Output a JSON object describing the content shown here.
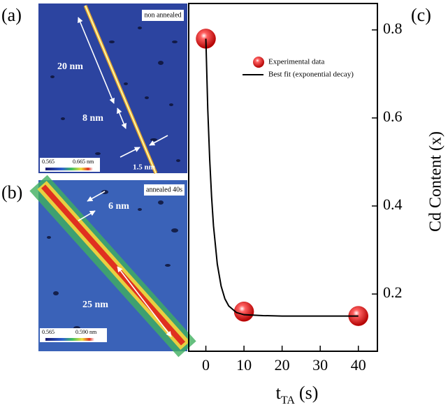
{
  "panel_a": {
    "label": "(a)",
    "tag": "non annealed",
    "annotations": [
      "20 nm",
      "8 nm",
      "1.5 nm"
    ],
    "colorbar": [
      "0.565",
      "0.665 nm"
    ]
  },
  "panel_b": {
    "label": "(b)",
    "tag": "annealed 40s",
    "annotations": [
      "6 nm",
      "25 nm"
    ],
    "colorbar": [
      "0.565",
      "0.590 nm"
    ]
  },
  "chart_data": {
    "type": "scatter",
    "panel_label": "(c)",
    "xlabel": {
      "main": "t",
      "sub": "TA",
      "unit": "(s)"
    },
    "ylabel": "Cd Content (x)",
    "xlim": [
      -4.5,
      45
    ],
    "xticks": [
      0,
      10,
      20,
      30,
      40
    ],
    "ylim": [
      0.07,
      0.86
    ],
    "yticks": [
      0.2,
      0.4,
      0.6,
      0.8
    ],
    "series": [
      {
        "name": "Experimental data",
        "color": "#d00000",
        "x": [
          0,
          10,
          40
        ],
        "values": [
          0.78,
          0.16,
          0.15
        ]
      },
      {
        "name": "Best fit (exponential decay)",
        "color": "#000000",
        "kind": "line",
        "x": [
          0,
          0.5,
          1,
          1.5,
          2,
          3,
          4,
          5,
          6,
          8,
          10,
          15,
          20,
          30,
          40
        ],
        "values": [
          0.78,
          0.62,
          0.507,
          0.421,
          0.355,
          0.268,
          0.218,
          0.189,
          0.173,
          0.158,
          0.153,
          0.151,
          0.15,
          0.15,
          0.15
        ]
      }
    ]
  }
}
